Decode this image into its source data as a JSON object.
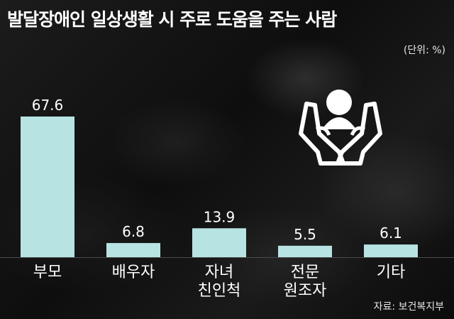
{
  "title": "발달장애인 일상생활 시 주로 도움을 주는 사람",
  "unit": "(단위: %)",
  "source": "자료: 보건복지부",
  "colors": {
    "bar": "#b8e3e3",
    "text": "#ffffff",
    "background": "#141414"
  },
  "icon": "hands-supporting-person-icon",
  "chart_data": {
    "type": "bar",
    "categories": [
      "부모",
      "배우자",
      "자녀\n친인척",
      "전문\n원조자",
      "기타"
    ],
    "values": [
      67.6,
      6.8,
      13.9,
      5.5,
      6.1
    ],
    "value_labels": [
      "67.6",
      "6.8",
      "13.9",
      "5.5",
      "6.1"
    ],
    "ylim": [
      0,
      67.6
    ],
    "grid": false,
    "legend": "none"
  }
}
